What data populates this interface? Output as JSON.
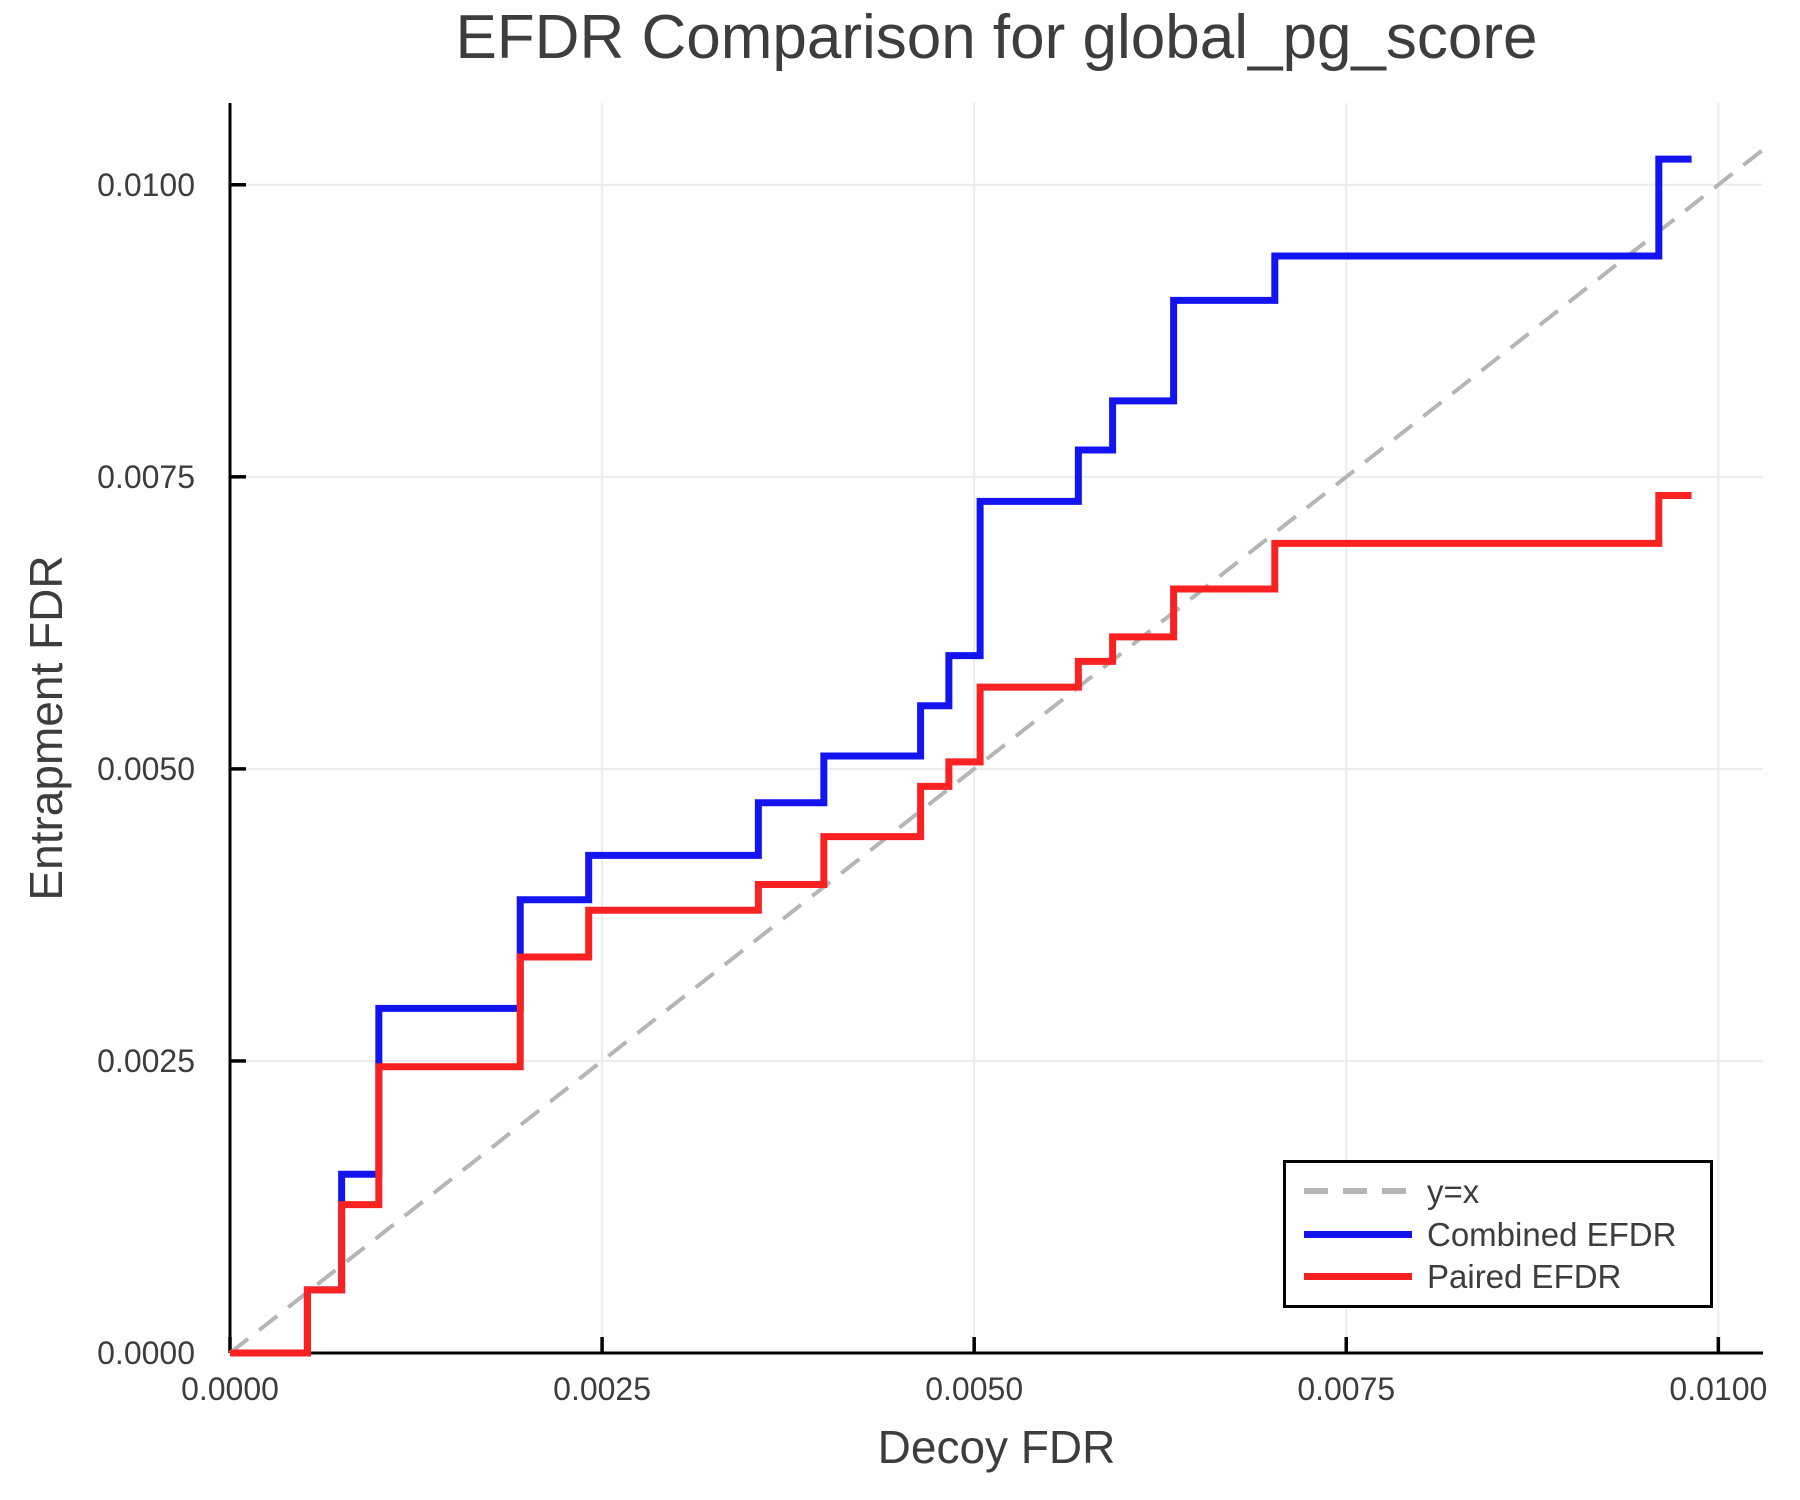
{
  "title": "EFDR Comparison for global_pg_score",
  "axes": {
    "xlabel": "Decoy FDR",
    "ylabel": "Entrapment FDR"
  },
  "legend": {
    "position": "lower right",
    "items": [
      {
        "label": "y=x",
        "color": "#b5b5b5",
        "style": "dashed"
      },
      {
        "label": "Combined EFDR",
        "color": "#1414f0",
        "style": "solid"
      },
      {
        "label": "Paired EFDR",
        "color": "#f92121",
        "style": "solid"
      }
    ]
  },
  "chart_data": {
    "type": "line",
    "subtype": "step-post",
    "title": "EFDR Comparison for global_pg_score",
    "xlabel": "Decoy FDR",
    "ylabel": "Entrapment FDR",
    "xlim": [
      0,
      0.0103
    ],
    "ylim": [
      0,
      0.0107
    ],
    "grid": true,
    "grid_color": "#ececec",
    "x_ticks": [
      0.0,
      0.0025,
      0.005,
      0.0075,
      0.01
    ],
    "x_tick_labels": [
      "0.0000",
      "0.0025",
      "0.0050",
      "0.0075",
      "0.0100"
    ],
    "y_ticks": [
      0.0,
      0.0025,
      0.005,
      0.0075,
      0.01
    ],
    "y_tick_labels": [
      "0.0000",
      "0.0025",
      "0.0050",
      "0.0075",
      "0.0100"
    ],
    "reference_line": {
      "name": "y=x",
      "from": [
        0,
        0
      ],
      "to": [
        0.0103,
        0.0103
      ],
      "color": "#b5b5b5",
      "style": "dashed"
    },
    "series": [
      {
        "name": "Combined EFDR",
        "color": "#1414f0",
        "x": [
          0,
          0.00052,
          0.00075,
          0.001,
          0.00195,
          0.00241,
          0.00355,
          0.00399,
          0.00464,
          0.00483,
          0.00504,
          0.0057,
          0.00593,
          0.00634,
          0.00702,
          0.0096,
          0.00982
        ],
        "y": [
          0,
          0.00054,
          0.00153,
          0.00295,
          0.00388,
          0.00426,
          0.00471,
          0.00511,
          0.00554,
          0.00597,
          0.00729,
          0.00773,
          0.00815,
          0.00901,
          0.00939,
          0.01022,
          0.01022
        ]
      },
      {
        "name": "Paired EFDR",
        "color": "#f92121",
        "x": [
          0,
          0.00052,
          0.00075,
          0.001,
          0.00195,
          0.00241,
          0.00355,
          0.00399,
          0.00464,
          0.00483,
          0.00504,
          0.0057,
          0.00593,
          0.00634,
          0.00702,
          0.0096,
          0.00982
        ],
        "y": [
          0,
          0.00054,
          0.00127,
          0.00245,
          0.00339,
          0.00379,
          0.00401,
          0.00442,
          0.00485,
          0.00506,
          0.0057,
          0.00592,
          0.00613,
          0.00654,
          0.00693,
          0.00734,
          0.00734
        ]
      }
    ]
  }
}
